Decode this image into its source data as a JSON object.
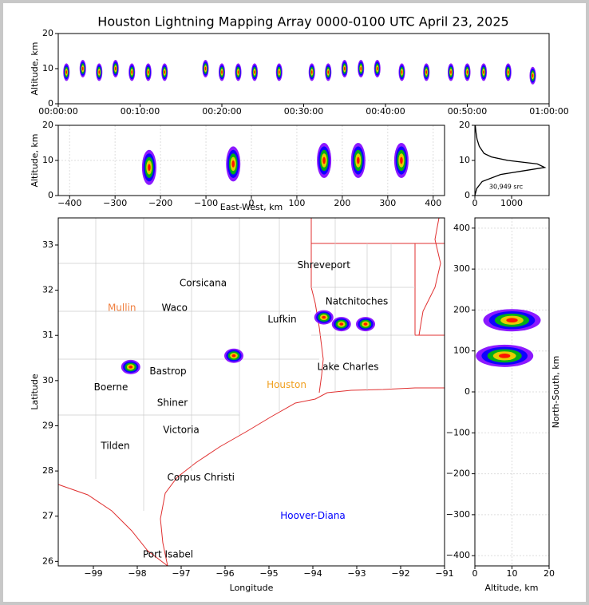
{
  "title": "Houston Lightning Mapping Array 0000-0100 UTC April 23, 2025",
  "time_height": {
    "type": "scatter",
    "ylabel": "Altitude, km",
    "xlim": [
      0,
      60
    ],
    "ylim": [
      0,
      20
    ],
    "xticks": [
      {
        "value": 0,
        "label": "00:00:00"
      },
      {
        "value": 10,
        "label": "00:10:00"
      },
      {
        "value": 20,
        "label": "00:20:00"
      },
      {
        "value": 30,
        "label": "00:30:00"
      },
      {
        "value": 40,
        "label": "00:40:00"
      },
      {
        "value": 50,
        "label": "00:50:00"
      },
      {
        "value": 60,
        "label": "01:00:00"
      }
    ],
    "yticks": [
      0,
      10,
      20
    ],
    "x": [
      1,
      3,
      5,
      7,
      9,
      11,
      13,
      18,
      20,
      22,
      24,
      27,
      31,
      33,
      35,
      37,
      39,
      42,
      45,
      48,
      50,
      52,
      55,
      58
    ],
    "y": [
      9,
      10,
      9,
      10,
      9,
      9,
      9,
      10,
      9,
      9,
      9,
      9,
      9,
      9,
      10,
      10,
      10,
      9,
      9,
      9,
      9,
      9,
      9,
      8
    ]
  },
  "east_west": {
    "type": "scatter",
    "xlabel": "East-West, km",
    "ylabel": "Altitude, km",
    "xlim": [
      -425,
      425
    ],
    "ylim": [
      0,
      20
    ],
    "grid": true,
    "xticks": [
      {
        "value": -400,
        "label": "−400"
      },
      {
        "value": -300,
        "label": "−300"
      },
      {
        "value": -200,
        "label": "−200"
      },
      {
        "value": -100,
        "label": "−100"
      },
      0,
      100,
      200,
      300,
      400
    ],
    "yticks": [
      0,
      10,
      20
    ],
    "x": [
      -225,
      -40,
      160,
      235,
      330
    ],
    "y": [
      8,
      9,
      10,
      10,
      10
    ]
  },
  "histogram": {
    "type": "line",
    "annotation": "30,949 src",
    "xlim": [
      0,
      2020
    ],
    "ylim": [
      0,
      20
    ],
    "xticks": [
      0,
      1000
    ],
    "yticks": [
      0,
      10,
      20
    ],
    "x": [
      0,
      50,
      200,
      700,
      1300,
      1900,
      1700,
      900,
      450,
      250,
      120,
      60,
      30,
      10
    ],
    "y": [
      0,
      2,
      4,
      6,
      7,
      8,
      9,
      10,
      11,
      12,
      14,
      16,
      18,
      20
    ]
  },
  "map": {
    "type": "scatter",
    "xlabel": "Longitude",
    "ylabel": "Latitude",
    "xlim": [
      -99.8,
      -91
    ],
    "ylim": [
      25.9,
      33.6
    ],
    "xticks": [
      {
        "value": -99,
        "label": "−99"
      },
      {
        "value": -98,
        "label": "−98"
      },
      {
        "value": -97,
        "label": "−97"
      },
      {
        "value": -96,
        "label": "−96"
      },
      {
        "value": -95,
        "label": "−95"
      },
      {
        "value": -94,
        "label": "−94"
      },
      {
        "value": -93,
        "label": "−93"
      },
      {
        "value": -92,
        "label": "−92"
      },
      {
        "value": -91,
        "label": "−91"
      }
    ],
    "yticks": [
      26,
      27,
      28,
      29,
      30,
      31,
      32,
      33
    ],
    "x": [
      -98.15,
      -95.8,
      -93.75,
      -93.35,
      -92.8
    ],
    "y": [
      30.3,
      30.55,
      31.4,
      31.25,
      31.25
    ],
    "cities": [
      {
        "name": "Shreveport",
        "lon": -93.75,
        "lat": 32.55,
        "color": "#000000"
      },
      {
        "name": "Corsicana",
        "lon": -96.5,
        "lat": 32.15,
        "color": "#000000"
      },
      {
        "name": "Mullin",
        "lon": -98.35,
        "lat": 31.6,
        "color": "#f08040"
      },
      {
        "name": "Waco",
        "lon": -97.15,
        "lat": 31.6,
        "color": "#000000"
      },
      {
        "name": "Natchitoches",
        "lon": -93.0,
        "lat": 31.75,
        "color": "#000000"
      },
      {
        "name": "Lufkin",
        "lon": -94.7,
        "lat": 31.35,
        "color": "#000000"
      },
      {
        "name": "Lake Charles",
        "lon": -93.2,
        "lat": 30.3,
        "color": "#000000"
      },
      {
        "name": "Bastrop",
        "lon": -97.3,
        "lat": 30.2,
        "color": "#000000"
      },
      {
        "name": "Boerne",
        "lon": -98.6,
        "lat": 29.85,
        "color": "#000000"
      },
      {
        "name": "Houston",
        "lon": -94.6,
        "lat": 29.9,
        "color": "#f0a020"
      },
      {
        "name": "Shiner",
        "lon": -97.2,
        "lat": 29.5,
        "color": "#000000"
      },
      {
        "name": "Victoria",
        "lon": -97.0,
        "lat": 28.9,
        "color": "#000000"
      },
      {
        "name": "Tilden",
        "lon": -98.5,
        "lat": 28.55,
        "color": "#000000"
      },
      {
        "name": "Corpus Christi",
        "lon": -96.55,
        "lat": 27.85,
        "color": "#000000"
      },
      {
        "name": "Hoover-Diana",
        "lon": -94.0,
        "lat": 27.0,
        "color": "#0000ff"
      },
      {
        "name": "Port Isabel",
        "lon": -97.3,
        "lat": 26.15,
        "color": "#000000"
      }
    ]
  },
  "north_south": {
    "type": "scatter",
    "xlabel": "Altitude, km",
    "ylabel": "North-South, km",
    "xlim": [
      0,
      20
    ],
    "ylim": [
      -425,
      425
    ],
    "grid": true,
    "xticks": [
      0,
      10,
      20
    ],
    "yticks": [
      {
        "value": -400,
        "label": "−400"
      },
      {
        "value": -300,
        "label": "−300"
      },
      {
        "value": -200,
        "label": "−200"
      },
      {
        "value": -100,
        "label": "−100"
      },
      0,
      100,
      200,
      300,
      400
    ],
    "x": [
      10,
      8
    ],
    "y": [
      175,
      88
    ]
  }
}
